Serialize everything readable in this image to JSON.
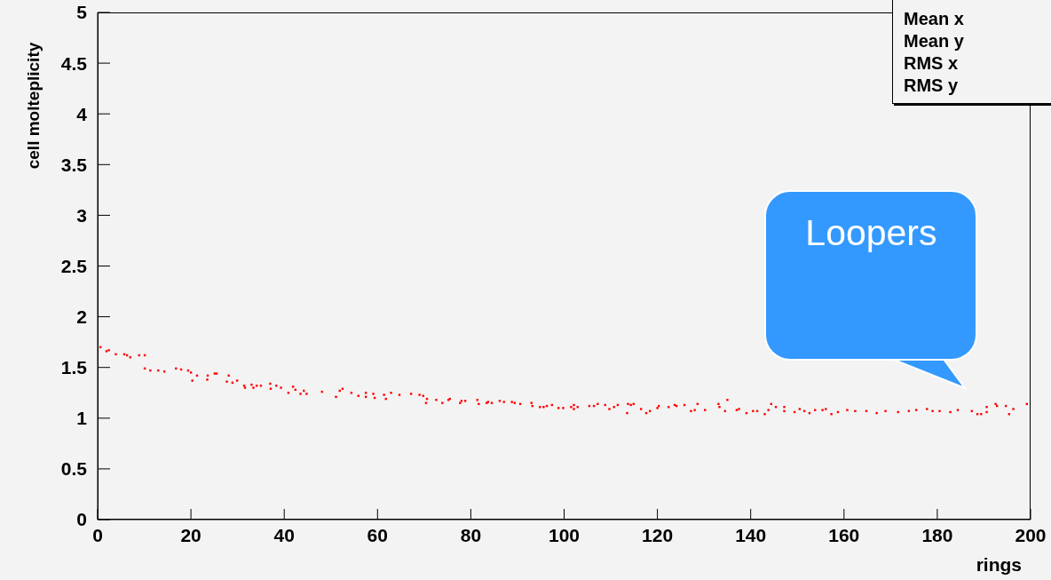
{
  "chart_data": {
    "type": "scatter",
    "xlabel": "rings",
    "ylabel": "cell molteplicity",
    "xlim": [
      0,
      200
    ],
    "xticks": [
      0,
      20,
      40,
      60,
      80,
      100,
      120,
      140,
      160,
      180,
      200
    ],
    "ylim": [
      0,
      5
    ],
    "yticks": [
      0,
      0.5,
      1,
      1.5,
      2,
      2.5,
      3,
      3.5,
      4,
      4.5,
      5
    ],
    "marker": "square",
    "grid": false,
    "legend": false,
    "annotations": [
      "Mean x",
      "Mean y",
      "RMS x",
      "RMS y",
      "Loopers"
    ],
    "series": [
      {
        "color": "#ff0000",
        "x": [
          0.6,
          1.9,
          2.4,
          3.9,
          5.7,
          6.3,
          7.0,
          8.9,
          10.1,
          10.1,
          11.3,
          13.0,
          14.3,
          16.8,
          17.9,
          19.4,
          20.0,
          20.3,
          21.3,
          23.5,
          23.6,
          25.1,
          25.5,
          27.7,
          28.1,
          28.9,
          29.9,
          31.4,
          31.6,
          33.0,
          33.4,
          34.1,
          35.0,
          37.0,
          37.1,
          38.3,
          39.3,
          40.9,
          41.9,
          42.4,
          43.5,
          44.2,
          44.8,
          48.1,
          51.1,
          51.9,
          52.5,
          54.4,
          55.9,
          57.5,
          57.5,
          59.1,
          59.4,
          61.4,
          61.8,
          62.9,
          64.7,
          67.2,
          69.0,
          69.8,
          70.4,
          70.6,
          72.6,
          73.9,
          75.2,
          75.5,
          77.7,
          78.0,
          78.8,
          81.4,
          81.7,
          83.4,
          83.7,
          84.5,
          86.2,
          87.1,
          88.8,
          89.4,
          90.6,
          93.0,
          93.2,
          94.8,
          95.6,
          96.3,
          97.4,
          98.8,
          99.8,
          101.5,
          102.1,
          102.1,
          102.9,
          105.4,
          106.4,
          107.2,
          108.8,
          109.7,
          110.7,
          111.5,
          113.5,
          113.7,
          114.3,
          114.9,
          116.5,
          117.6,
          118.4,
          120.0,
          120.3,
          122.4,
          123.7,
          124.1,
          125.8,
          127.2,
          128.0,
          128.6,
          130.2,
          133.1,
          133.3,
          134.5,
          135.0,
          137.0,
          137.5,
          139.1,
          140.5,
          141.4,
          143.0,
          143.8,
          144.4,
          145.4,
          147.2,
          147.2,
          149.4,
          150.5,
          151.5,
          152.6,
          153.8,
          155.4,
          156.1,
          157.3,
          158.7,
          160.7,
          162.4,
          164.8,
          167.0,
          168.9,
          171.6,
          173.9,
          175.5,
          177.8,
          179.0,
          180.5,
          182.8,
          184.4,
          187.4,
          188.6,
          189.4,
          190.6,
          190.6,
          192.5,
          192.8,
          194.7,
          195.4,
          196.3,
          199.2
        ],
        "values": [
          1.7,
          1.66,
          1.67,
          1.63,
          1.63,
          1.62,
          1.6,
          1.62,
          1.62,
          1.49,
          1.47,
          1.47,
          1.46,
          1.49,
          1.48,
          1.47,
          1.45,
          1.37,
          1.42,
          1.38,
          1.42,
          1.44,
          1.44,
          1.36,
          1.42,
          1.35,
          1.37,
          1.32,
          1.3,
          1.33,
          1.3,
          1.32,
          1.32,
          1.34,
          1.29,
          1.32,
          1.3,
          1.25,
          1.31,
          1.28,
          1.24,
          1.27,
          1.24,
          1.26,
          1.21,
          1.27,
          1.29,
          1.25,
          1.22,
          1.25,
          1.21,
          1.24,
          1.2,
          1.23,
          1.19,
          1.25,
          1.23,
          1.24,
          1.23,
          1.22,
          1.15,
          1.19,
          1.18,
          1.15,
          1.18,
          1.19,
          1.15,
          1.17,
          1.17,
          1.18,
          1.14,
          1.15,
          1.16,
          1.15,
          1.17,
          1.16,
          1.16,
          1.15,
          1.14,
          1.15,
          1.12,
          1.11,
          1.11,
          1.12,
          1.13,
          1.1,
          1.1,
          1.11,
          1.13,
          1.09,
          1.11,
          1.12,
          1.12,
          1.14,
          1.13,
          1.09,
          1.11,
          1.13,
          1.05,
          1.14,
          1.13,
          1.14,
          1.09,
          1.05,
          1.07,
          1.1,
          1.12,
          1.11,
          1.13,
          1.12,
          1.13,
          1.07,
          1.08,
          1.14,
          1.08,
          1.14,
          1.11,
          1.07,
          1.18,
          1.08,
          1.09,
          1.05,
          1.07,
          1.07,
          1.04,
          1.08,
          1.14,
          1.11,
          1.11,
          1.07,
          1.06,
          1.09,
          1.07,
          1.05,
          1.08,
          1.08,
          1.09,
          1.04,
          1.06,
          1.08,
          1.07,
          1.07,
          1.05,
          1.07,
          1.06,
          1.07,
          1.08,
          1.09,
          1.07,
          1.07,
          1.06,
          1.08,
          1.07,
          1.04,
          1.04,
          1.11,
          1.06,
          1.14,
          1.12,
          1.12,
          1.04,
          1.09,
          1.14
        ]
      }
    ]
  }
}
